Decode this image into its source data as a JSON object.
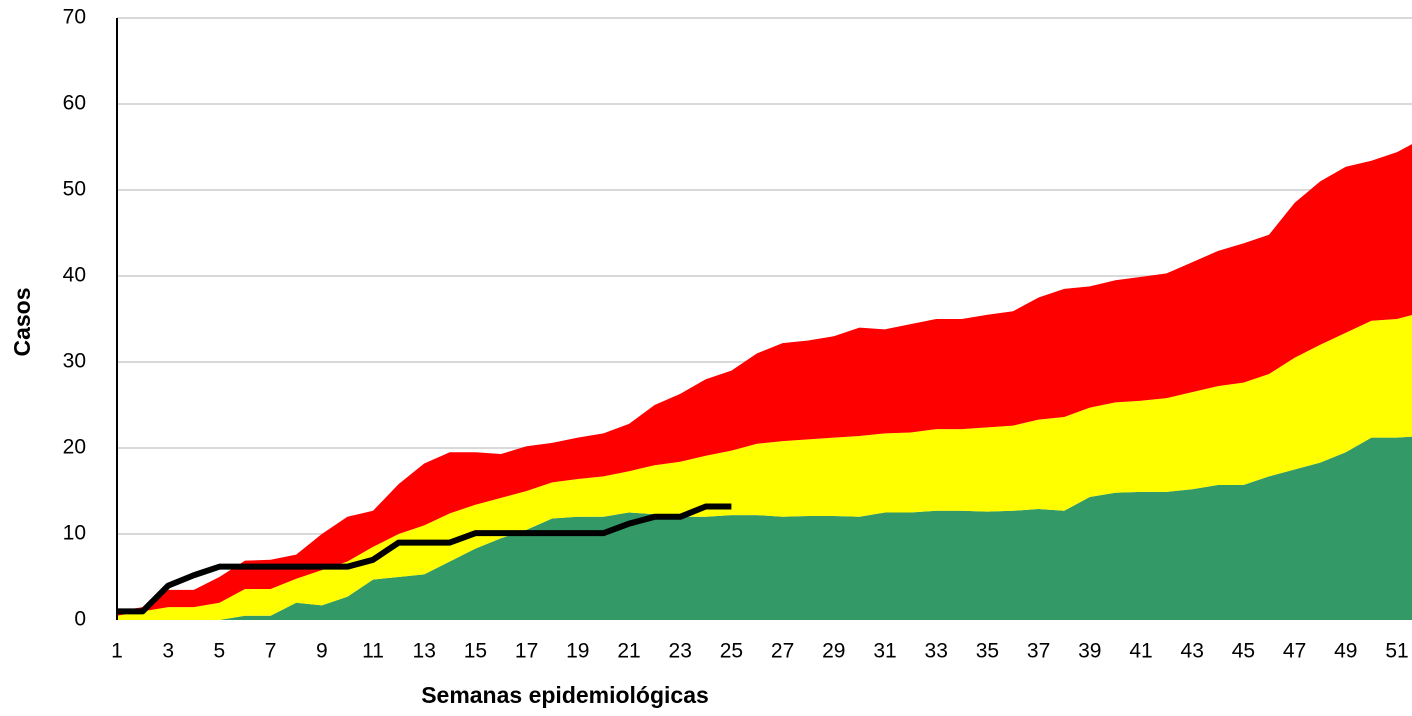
{
  "chart_data": {
    "type": "area",
    "stacked": true,
    "x_label": "Semanas epidemiológicas",
    "y_label": "Casos",
    "categories": [
      1,
      null,
      3,
      null,
      5,
      null,
      7,
      null,
      9,
      null,
      11,
      null,
      13,
      null,
      15,
      null,
      17,
      null,
      19,
      null,
      21,
      null,
      23,
      null,
      25,
      null,
      27,
      null,
      29,
      null,
      31,
      null,
      33,
      null,
      35,
      null,
      37,
      null,
      39,
      null,
      41,
      null,
      43,
      null,
      45,
      null,
      47,
      null,
      49,
      null,
      51,
      null
    ],
    "series": [
      {
        "color": "#339966",
        "values": [
          0,
          0,
          0,
          0,
          0,
          0.5,
          0.5,
          2,
          1.7,
          2.7,
          4.7,
          5,
          5.3,
          6.8,
          8.3,
          9.5,
          10.5,
          11.8,
          12,
          12,
          12.5,
          12.3,
          12,
          12,
          12.2,
          12.2,
          12,
          12.1,
          12.1,
          12,
          12.5,
          12.5,
          12.7,
          12.7,
          12.6,
          12.7,
          12.9,
          12.7,
          14.3,
          14.8,
          14.9,
          14.9,
          15.2,
          15.7,
          15.7,
          16.7,
          17.5,
          18.3,
          19.5,
          21.2,
          21.2,
          21.4
        ]
      },
      {
        "color": "#ffff00",
        "values": [
          0.5,
          1,
          1.5,
          1.5,
          2,
          3.1,
          3.1,
          2.8,
          4.1,
          4.1,
          3.8,
          5,
          5.7,
          5.6,
          5.1,
          4.7,
          4.5,
          4.2,
          4.4,
          4.7,
          4.8,
          5.7,
          6.4,
          7.1,
          7.5,
          8.3,
          8.8,
          8.9,
          9.1,
          9.4,
          9.2,
          9.3,
          9.5,
          9.5,
          9.8,
          9.9,
          10.4,
          10.9,
          10.4,
          10.5,
          10.6,
          10.9,
          11.3,
          11.5,
          11.9,
          11.9,
          13,
          13.7,
          13.9,
          13.6,
          13.8,
          14.4
        ]
      },
      {
        "color": "#ff0000",
        "values": [
          0.5,
          0.5,
          2,
          2,
          3,
          3.3,
          3.4,
          2.8,
          4.2,
          5.2,
          4.2,
          5.8,
          7.2,
          7.1,
          6.1,
          5.1,
          5.2,
          4.6,
          4.8,
          5,
          5.5,
          7,
          7.9,
          8.9,
          9.3,
          10.5,
          11.4,
          11.5,
          11.8,
          12.6,
          12.1,
          12.6,
          12.8,
          12.8,
          13.1,
          13.3,
          14.2,
          14.9,
          14.1,
          14.2,
          14.4,
          14.5,
          15.1,
          15.7,
          16.2,
          16.2,
          18,
          19,
          19.3,
          18.6,
          19.4,
          20.2
        ]
      },
      {
        "type": "line",
        "color": "#000000",
        "values": [
          1,
          1,
          4,
          5.2,
          6.2,
          6.2,
          6.2,
          6.2,
          6.2,
          6.2,
          7,
          9,
          9,
          9,
          10.1,
          10.1,
          10.1,
          10.1,
          10.1,
          10.1,
          11.2,
          12,
          12,
          13.2,
          13.2,
          null,
          null,
          null,
          null,
          null,
          null,
          null,
          null,
          null,
          null,
          null,
          null,
          null,
          null,
          null,
          null,
          null,
          null,
          null,
          null,
          null,
          null,
          null,
          null,
          null,
          null,
          null
        ]
      }
    ],
    "ylim": [
      0,
      70
    ],
    "yticks": [
      0,
      10,
      20,
      30,
      40,
      50,
      60,
      70
    ],
    "grid": true
  }
}
